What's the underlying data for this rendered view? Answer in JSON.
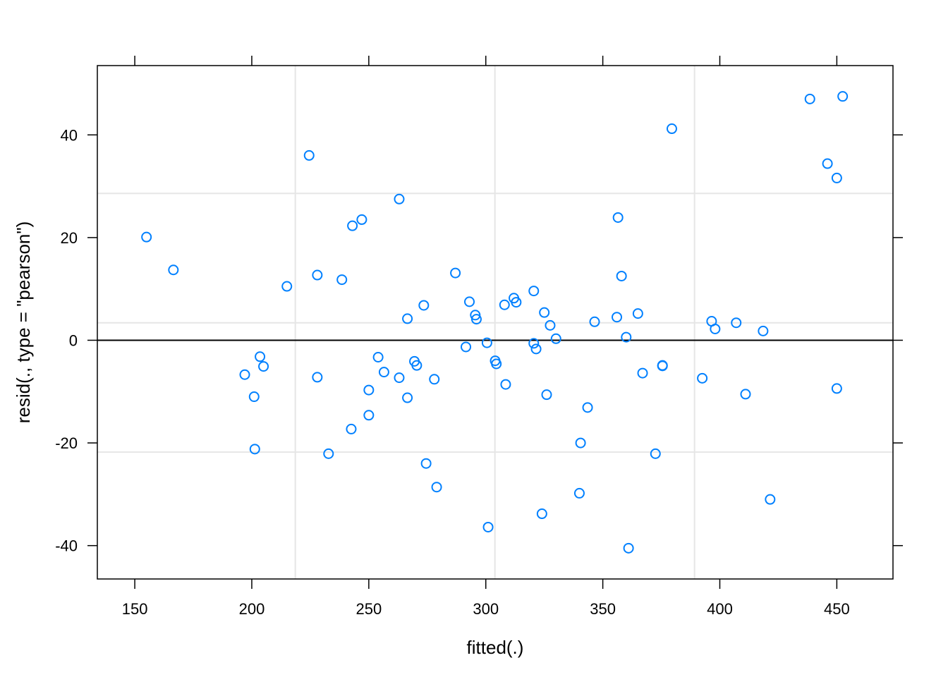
{
  "chart_data": {
    "type": "scatter",
    "xlabel": "fitted(.)",
    "ylabel": "resid(., type = \"pearson\")",
    "xlim": [
      134,
      474
    ],
    "ylim": [
      -46.5,
      53.5
    ],
    "x_ticks": [
      150,
      200,
      250,
      300,
      350,
      400,
      450
    ],
    "y_ticks": [
      -40,
      -20,
      0,
      20,
      40
    ],
    "x_tick_labels": [
      "150",
      "200",
      "250",
      "300",
      "350",
      "400",
      "450"
    ],
    "y_tick_labels": [
      "-40",
      "-20",
      "0",
      "20",
      "40"
    ],
    "vertical_gridlines": [
      218.6,
      303.9,
      389.2
    ],
    "horizontal_gridlines": [
      -21.8,
      3.4,
      28.6
    ],
    "reference_line_y": 0,
    "grid": true,
    "legend": "none",
    "point_color": "#0080ff",
    "series": [
      {
        "points": [
          [
            155,
            20.1
          ],
          [
            166.5,
            13.7
          ],
          [
            197,
            -6.7
          ],
          [
            201,
            -11
          ],
          [
            201.3,
            -21.2
          ],
          [
            203.5,
            -3.2
          ],
          [
            205,
            -5.1
          ],
          [
            215,
            10.5
          ],
          [
            224.5,
            36
          ],
          [
            228,
            12.7
          ],
          [
            228,
            -7.2
          ],
          [
            232.8,
            -22.1
          ],
          [
            238.5,
            11.8
          ],
          [
            242.5,
            -17.3
          ],
          [
            243,
            22.3
          ],
          [
            247,
            23.5
          ],
          [
            250,
            -14.6
          ],
          [
            250,
            -9.7
          ],
          [
            254,
            -3.3
          ],
          [
            256.5,
            -6.2
          ],
          [
            263,
            -7.3
          ],
          [
            263,
            27.5
          ],
          [
            266.5,
            4.2
          ],
          [
            266.5,
            -11.2
          ],
          [
            269.5,
            -4.1
          ],
          [
            270.5,
            -4.9
          ],
          [
            273.5,
            6.8
          ],
          [
            274.5,
            -24
          ],
          [
            278,
            -7.6
          ],
          [
            279,
            -28.6
          ],
          [
            287,
            13.1
          ],
          [
            291.5,
            -1.3
          ],
          [
            293,
            7.5
          ],
          [
            295.5,
            4.9
          ],
          [
            296,
            4.1
          ],
          [
            300.5,
            -0.5
          ],
          [
            301,
            -36.4
          ],
          [
            304,
            -4
          ],
          [
            304.5,
            -4.6
          ],
          [
            308,
            6.9
          ],
          [
            308.5,
            -8.6
          ],
          [
            312,
            8.2
          ],
          [
            313,
            7.4
          ],
          [
            320.5,
            9.6
          ],
          [
            320.5,
            -0.6
          ],
          [
            321.5,
            -1.7
          ],
          [
            324,
            -33.8
          ],
          [
            325,
            5.4
          ],
          [
            326,
            -10.6
          ],
          [
            327.5,
            2.9
          ],
          [
            330,
            0.3
          ],
          [
            340,
            -29.8
          ],
          [
            340.5,
            -20
          ],
          [
            343.5,
            -13.1
          ],
          [
            346.5,
            3.6
          ],
          [
            356,
            4.5
          ],
          [
            356.5,
            23.9
          ],
          [
            358,
            12.5
          ],
          [
            360,
            0.6
          ],
          [
            361,
            -40.5
          ],
          [
            365,
            5.2
          ],
          [
            367,
            -6.4
          ],
          [
            372.5,
            -22.1
          ],
          [
            375.5,
            -4.9
          ],
          [
            375.5,
            -5
          ],
          [
            379.5,
            41.2
          ],
          [
            392.5,
            -7.4
          ],
          [
            396.5,
            3.7
          ],
          [
            398,
            2.2
          ],
          [
            407,
            3.4
          ],
          [
            411,
            -10.5
          ],
          [
            418.5,
            1.8
          ],
          [
            421.5,
            -31
          ],
          [
            438.5,
            47
          ],
          [
            446,
            34.4
          ],
          [
            450,
            -9.4
          ],
          [
            450,
            31.6
          ],
          [
            452.5,
            47.5
          ]
        ]
      }
    ]
  }
}
